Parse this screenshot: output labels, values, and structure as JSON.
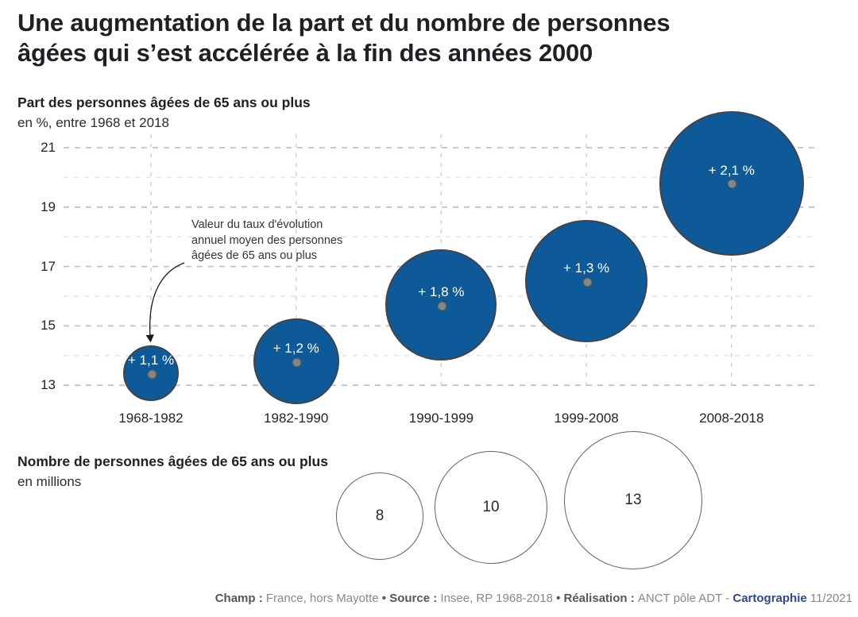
{
  "title": {
    "line1": "Une augmentation de la part et du nombre de personnes",
    "line2": "âgées qui s’est accélérée à la fin des années 2000"
  },
  "chart_data": {
    "type": "bubble",
    "title": "Une augmentation de la part et du nombre de personnes âgées qui s’est accélérée à la fin des années 2000",
    "share_chart": {
      "heading": "Part des personnes âgées de 65 ans ou plus",
      "unit": "en %, entre 1968 et 2018",
      "y_ticks": [
        21,
        19,
        17,
        15,
        13
      ],
      "y_minor_ticks": [
        20,
        18,
        16,
        14
      ],
      "y_range": [
        13,
        21
      ],
      "grid": "dashed",
      "categories": [
        "1968-1982",
        "1982-1990",
        "1990-1999",
        "1999-2008",
        "2008-2018"
      ],
      "series": [
        {
          "period": "1968-1982",
          "label": "+ 1,1 %",
          "annual_rate_pct": 1.1,
          "share_pct": 13.4,
          "radius_px": 35
        },
        {
          "period": "1982-1990",
          "label": "+ 1,2 %",
          "annual_rate_pct": 1.2,
          "share_pct": 13.8,
          "radius_px": 54
        },
        {
          "period": "1990-1999",
          "label": "+ 1,8 %",
          "annual_rate_pct": 1.8,
          "share_pct": 15.7,
          "radius_px": 70
        },
        {
          "period": "1999-2008",
          "label": "+ 1,3 %",
          "annual_rate_pct": 1.3,
          "share_pct": 16.5,
          "radius_px": 77
        },
        {
          "period": "2008-2018",
          "label": "+ 2,1 %",
          "annual_rate_pct": 2.1,
          "share_pct": 19.8,
          "radius_px": 91
        }
      ],
      "annotation": {
        "lines": [
          "Valeur du taux d'évolution",
          "annuel moyen des personnes",
          "âgées de 65 ans ou plus"
        ]
      }
    },
    "size_legend": {
      "heading": "Nombre de personnes âgées de 65 ans ou plus",
      "unit": "en millions",
      "items": [
        {
          "value": "8",
          "radius_px": 55
        },
        {
          "value": "10",
          "radius_px": 71
        },
        {
          "value": "13",
          "radius_px": 87
        }
      ]
    }
  },
  "footer": {
    "segments": [
      {
        "text": "Champ : ",
        "style": "bold"
      },
      {
        "text": "France, hors Mayotte",
        "style": "regular"
      },
      {
        "text": " • ",
        "style": "bold"
      },
      {
        "text": "Source : ",
        "style": "bold"
      },
      {
        "text": "Insee, RP 1968-2018",
        "style": "regular"
      },
      {
        "text": " • ",
        "style": "bold"
      },
      {
        "text": "Réalisation : ",
        "style": "bold"
      },
      {
        "text": "ANCT pôle ADT - ",
        "style": "regular"
      },
      {
        "text": "Cartographie",
        "style": "bold-blue"
      },
      {
        "text": " 11/2021",
        "style": "regular"
      }
    ]
  },
  "colors": {
    "bubble_fill": "#0e5a99",
    "bubble_border": "#3f444a",
    "bubble_dot": "#8a8580",
    "grid_major": "#c2c2c4",
    "grid_minor": "#e2e2e3",
    "grid_vertical": "#d0d0d2",
    "accent_blue": "#2c4796",
    "text_dark": "#1f2026"
  }
}
